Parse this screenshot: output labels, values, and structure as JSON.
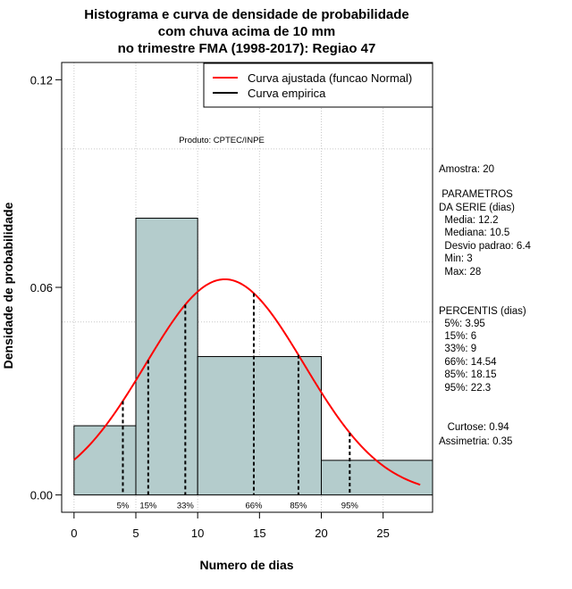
{
  "chart_data": {
    "type": "bar",
    "title_lines": [
      "Histograma e curva de densidade de probabilidade",
      "com chuva acima de 10 mm",
      "no trimestre FMA (1998-2017): Regiao 47"
    ],
    "xlabel": "Numero de dias",
    "ylabel": "Densidade de probabilidade",
    "xlim": [
      -1,
      29
    ],
    "ylim": [
      -0.005,
      0.125
    ],
    "x_ticks": [
      0,
      5,
      10,
      15,
      20,
      25
    ],
    "y_ticks": [
      0.0,
      0.06,
      0.12
    ],
    "y_tick_labels": [
      "0.00",
      "0.06",
      "0.12"
    ],
    "grid_x": [
      0,
      5,
      10,
      15,
      20,
      25
    ],
    "grid_y": [
      0.1,
      0.05
    ],
    "bins": [
      {
        "from": 0,
        "to": 5,
        "density": 0.02
      },
      {
        "from": 5,
        "to": 10,
        "density": 0.08
      },
      {
        "from": 10,
        "to": 20,
        "density": 0.04
      },
      {
        "from": 20,
        "to": 29,
        "density": 0.01
      }
    ],
    "bar_color": "#b4cccc",
    "normal_curve": {
      "mean": 12.2,
      "sd": 6.4,
      "x_from": 0,
      "x_to": 28,
      "color": "#ff0000"
    },
    "percentile_lines": [
      {
        "label": "5%",
        "x": 3.95
      },
      {
        "label": "15%",
        "x": 6
      },
      {
        "label": "33%",
        "x": 9
      },
      {
        "label": "66%",
        "x": 14.54
      },
      {
        "label": "85%",
        "x": 18.15
      },
      {
        "label": "95%",
        "x": 22.3
      }
    ],
    "legend": [
      {
        "label": "Curva ajustada (funcao Normal)",
        "color": "#ff0000"
      },
      {
        "label": "Curva empirica",
        "color": "#000000"
      }
    ],
    "legend_position": "top-right",
    "annotation": "Produto: CPTEC/INPE"
  },
  "side_panel": {
    "lines": [
      "Amostra: 20",
      " PARAMETROS",
      "DA SERIE (dias)",
      "  Media: 12.2",
      "  Mediana: 10.5",
      "  Desvio padrao: 6.4",
      "  Min: 3",
      "  Max: 28",
      "PERCENTIS (dias)",
      "  5%: 3.95",
      "  15%: 6",
      "  33%: 9",
      "  66%: 14.54",
      "  85%: 18.15",
      "  95%: 22.3",
      "   Curtose: 0.94",
      "Assimetria: 0.35"
    ]
  }
}
